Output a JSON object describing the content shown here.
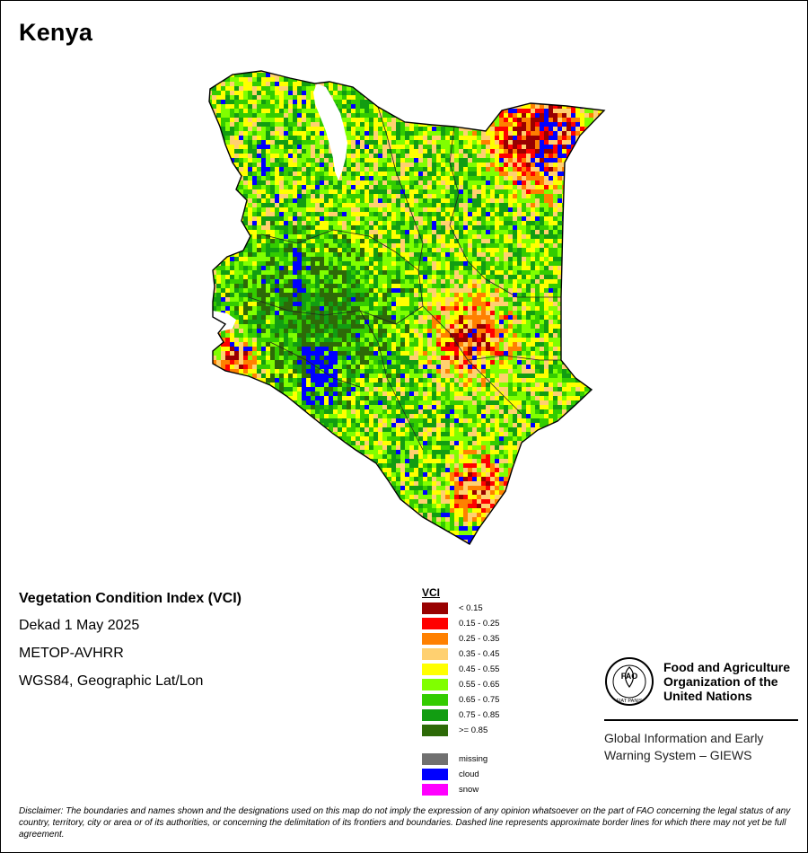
{
  "map": {
    "country": "Kenya",
    "product": "Vegetation Condition Index (VCI)",
    "period": "Dekad 1 May 2025",
    "sensor": "METOP-AVHRR",
    "projection": "WGS84, Geographic Lat/Lon"
  },
  "legend": {
    "title": "VCI",
    "classes": [
      {
        "label": "< 0.15",
        "color": "#990000"
      },
      {
        "label": "0.15 - 0.25",
        "color": "#ff0000"
      },
      {
        "label": "0.25 - 0.35",
        "color": "#ff8000"
      },
      {
        "label": "0.35 - 0.45",
        "color": "#ffd070"
      },
      {
        "label": "0.45 - 0.55",
        "color": "#ffff00"
      },
      {
        "label": "0.55 - 0.65",
        "color": "#80ff00"
      },
      {
        "label": "0.65 - 0.75",
        "color": "#33cc00"
      },
      {
        "label": "0.75 - 0.85",
        "color": "#129d12"
      },
      {
        "label": ">= 0.85",
        "color": "#2d6a08"
      }
    ],
    "special": [
      {
        "label": "missing",
        "color": "#707070"
      },
      {
        "label": "cloud",
        "color": "#0000ff"
      },
      {
        "label": "snow",
        "color": "#ff00ff"
      }
    ]
  },
  "org": {
    "name": "Food and Agriculture Organization of the United Nations",
    "name_lines": [
      "Food and Agriculture",
      "Organization of the",
      "United Nations"
    ],
    "logo_letters": "FAO",
    "logo_motto": "FIAT PANIS",
    "system_lines": [
      "Global Information and Early",
      "Warning System – GIEWS"
    ]
  },
  "disclaimer": "Disclaimer: The boundaries and names shown and the designations used on this map do not imply the expression of any opinion whatsoever on the part of FAO concerning the legal status of any country, territory, city or area or of its authorities, or concerning the delimitation of its frontiers and boundaries. Dashed line represents approximate border lines for which there may not yet be full agreement."
}
